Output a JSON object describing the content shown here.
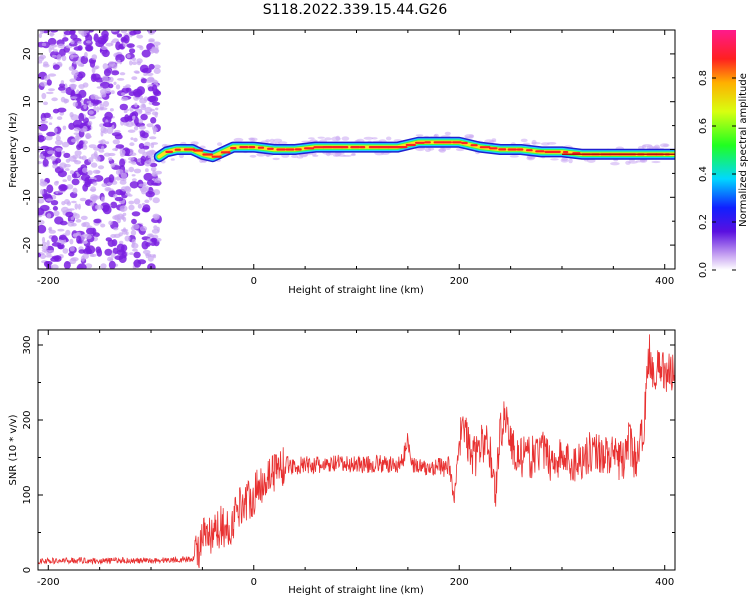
{
  "title": "S118.2022.339.15.44.G26",
  "colors": {
    "snr_line": "#e83030",
    "band_edge": "#2020d0",
    "band_outer": "#20d0ff",
    "band_mid": "#40ff40",
    "band_core": "#ffe020",
    "band_peak": "#ff2020",
    "noise": "#7a1fe0",
    "noise_light": "#c9a6f2"
  },
  "chart_data": [
    {
      "type": "heatmap",
      "name": "spectrogram",
      "xlabel": "Height of straight line (km)",
      "ylabel": "Frequency (Hz)",
      "xlim": [
        -210,
        410
      ],
      "ylim": [
        -25,
        25
      ],
      "x_ticks": [
        -200,
        0,
        200,
        400
      ],
      "y_ticks": [
        -20,
        -10,
        0,
        10,
        20
      ],
      "x_tick_labels": [
        "-200",
        "0",
        "200",
        "400"
      ],
      "y_tick_labels": [
        "-20",
        "-10",
        "0",
        "10",
        "20"
      ],
      "noise_region_x": [
        -210,
        -92
      ],
      "ridge": {
        "x": [
          -92,
          -85,
          -75,
          -60,
          -50,
          -40,
          -30,
          -20,
          -10,
          0,
          20,
          40,
          60,
          80,
          100,
          120,
          140,
          160,
          180,
          200,
          220,
          240,
          260,
          280,
          300,
          320,
          340,
          360,
          380,
          400,
          410
        ],
        "freq": [
          -1.5,
          -0.5,
          0.0,
          0.0,
          -1.0,
          -1.5,
          -0.5,
          0.5,
          0.5,
          0.5,
          0.0,
          0.0,
          0.5,
          0.5,
          0.5,
          0.5,
          0.5,
          1.5,
          1.5,
          1.5,
          0.5,
          0.0,
          0.0,
          -0.5,
          -0.5,
          -1.0,
          -1.0,
          -1.0,
          -1.0,
          -1.0,
          -1.0
        ]
      },
      "colorbar": {
        "label": "Normalized spectral amplitude",
        "range": [
          0,
          1
        ],
        "ticks": [
          0.0,
          0.2,
          0.4,
          0.6,
          0.8
        ],
        "tick_labels": [
          "0.0",
          "0.2",
          "0.4",
          "0.6",
          "0.8"
        ]
      }
    },
    {
      "type": "line",
      "name": "snr",
      "xlabel": "Height of straight line (km)",
      "ylabel": "SNR (10 * v/v)",
      "xlim": [
        -210,
        410
      ],
      "ylim": [
        0,
        320
      ],
      "x_ticks": [
        -200,
        0,
        200,
        400
      ],
      "y_ticks": [
        0,
        100,
        200,
        300
      ],
      "x_tick_labels": [
        "-200",
        "0",
        "200",
        "400"
      ],
      "y_tick_labels": [
        "0",
        "100",
        "200",
        "300"
      ],
      "x": [
        -210,
        -190,
        -170,
        -150,
        -130,
        -110,
        -90,
        -70,
        -60,
        -55,
        -50,
        -45,
        -40,
        -35,
        -30,
        -25,
        -20,
        -15,
        -10,
        -5,
        0,
        5,
        10,
        15,
        20,
        25,
        30,
        35,
        40,
        50,
        60,
        70,
        80,
        90,
        100,
        110,
        120,
        130,
        140,
        145,
        150,
        155,
        160,
        165,
        170,
        180,
        185,
        190,
        195,
        200,
        205,
        210,
        215,
        220,
        225,
        230,
        235,
        240,
        245,
        250,
        255,
        260,
        270,
        280,
        290,
        300,
        310,
        320,
        330,
        340,
        350,
        360,
        365,
        370,
        375,
        380,
        385,
        390,
        395,
        400,
        405,
        410
      ],
      "y": [
        12,
        12,
        13,
        12,
        13,
        12,
        13,
        14,
        14,
        25,
        40,
        45,
        40,
        55,
        60,
        50,
        65,
        85,
        90,
        95,
        100,
        110,
        120,
        128,
        132,
        138,
        140,
        140,
        138,
        140,
        140,
        138,
        142,
        140,
        142,
        140,
        142,
        140,
        140,
        145,
        175,
        140,
        138,
        135,
        135,
        140,
        135,
        140,
        95,
        175,
        190,
        160,
        150,
        165,
        170,
        160,
        100,
        185,
        210,
        170,
        155,
        150,
        150,
        160,
        145,
        150,
        140,
        150,
        160,
        155,
        150,
        145,
        175,
        150,
        155,
        200,
        290,
        260,
        270,
        265,
        260,
        280
      ]
    }
  ]
}
